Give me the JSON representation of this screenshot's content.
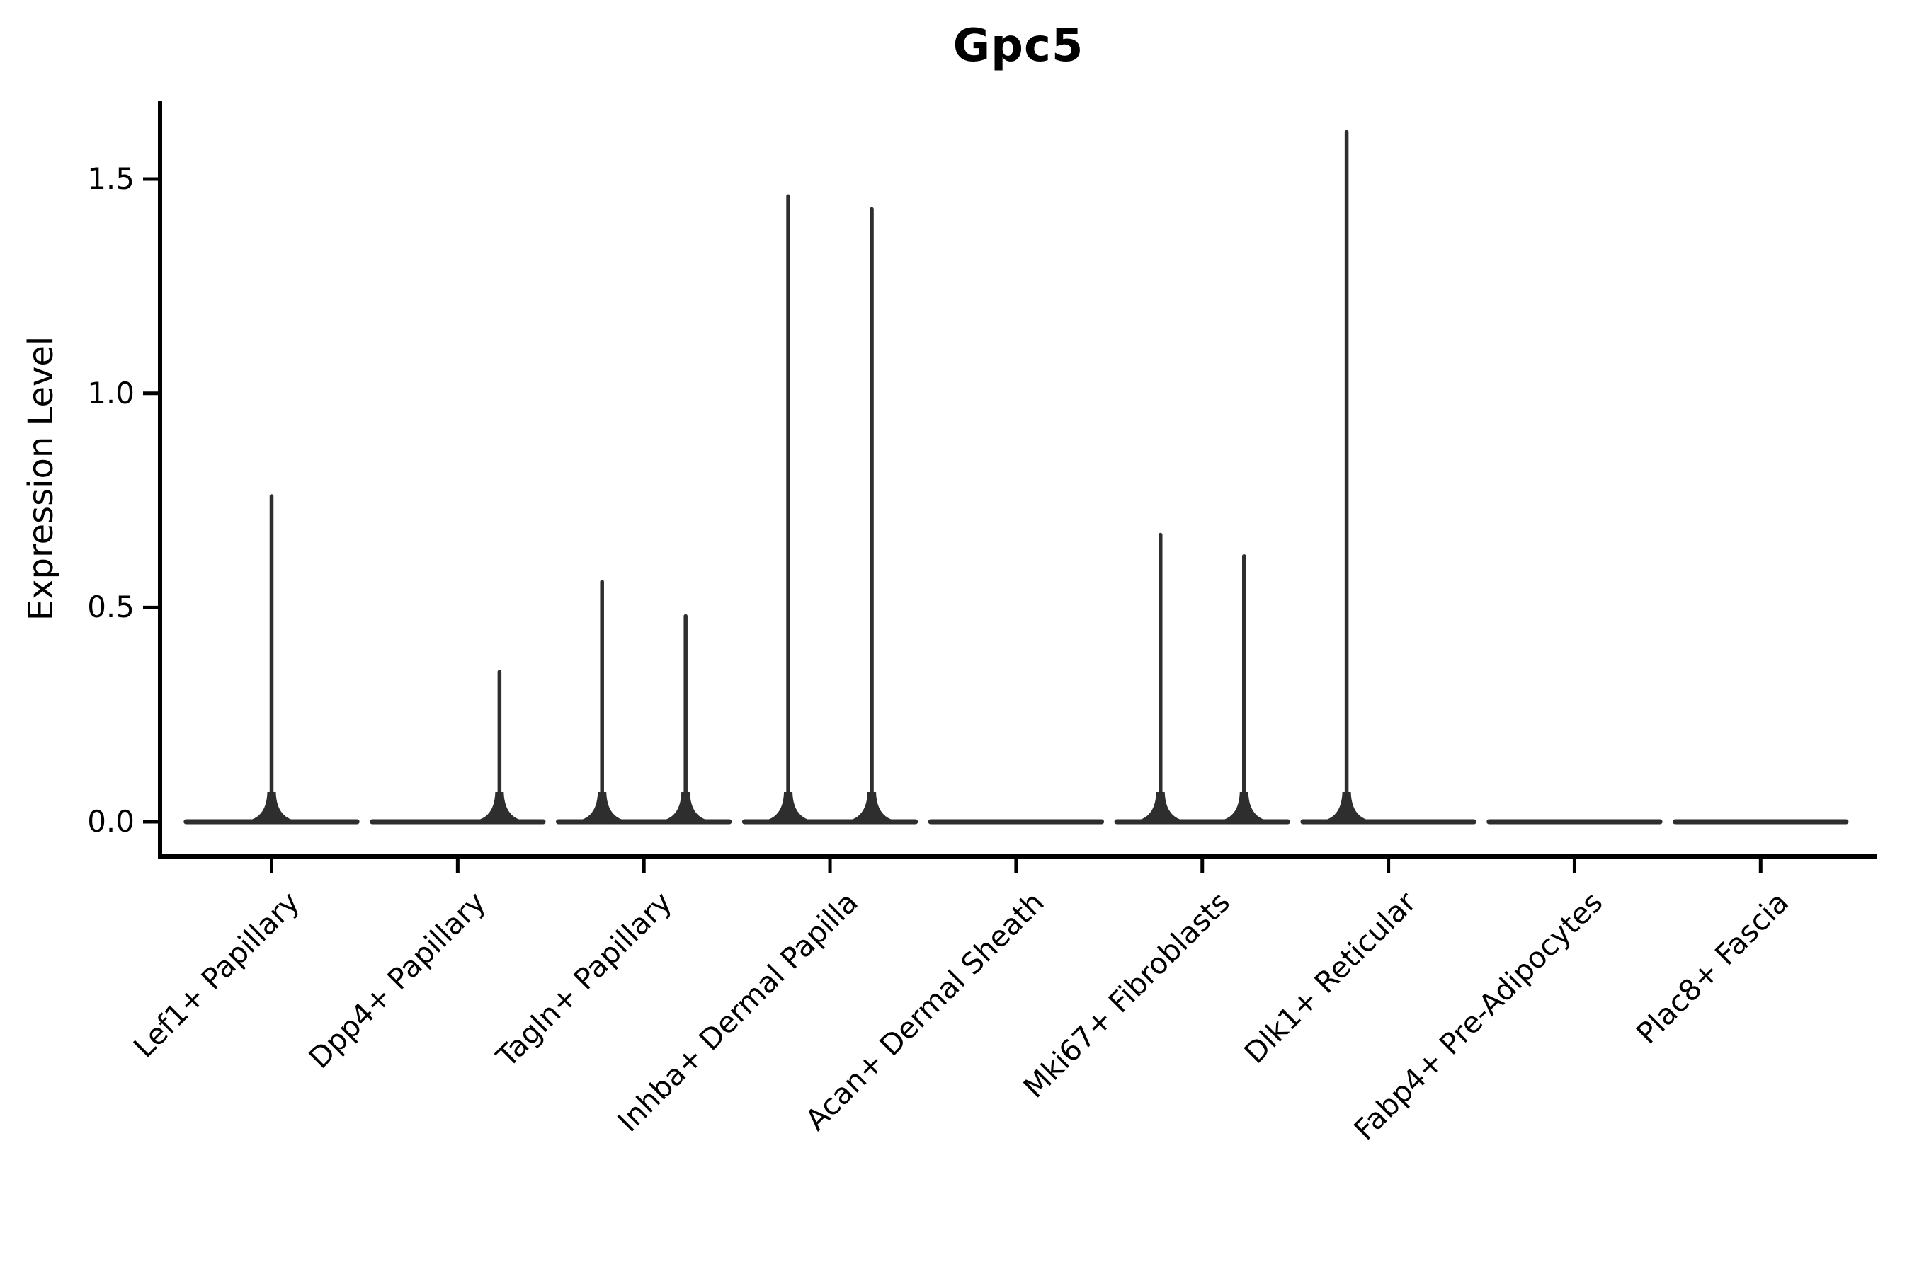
{
  "header": {
    "title": "Gpc5"
  },
  "chart_data": {
    "type": "violin",
    "title": "Gpc5",
    "xlabel": "",
    "ylabel": "Expression Level",
    "ylim": [
      0,
      1.68
    ],
    "y_ticks": [
      {
        "value": 0.0,
        "label": "0.0"
      },
      {
        "value": 0.5,
        "label": "0.5"
      },
      {
        "value": 1.0,
        "label": "1.0"
      },
      {
        "value": 1.5,
        "label": "1.5"
      }
    ],
    "grid": false,
    "legend": null,
    "note": "Violin plot of Gpc5 expression; most cells at 0 so violins collapse to a flat base with thin density spikes; two side-by-side violins per cluster",
    "categories": [
      {
        "label": "Lef1+ Papillary",
        "violins": [
          {
            "position": "center",
            "max_expression": 0.76
          }
        ]
      },
      {
        "label": "Dpp4+ Papillary",
        "violins": [
          {
            "position": "left",
            "max_expression": 0.0
          },
          {
            "position": "right",
            "max_expression": 0.35
          }
        ]
      },
      {
        "label": "Tagln+ Papillary",
        "violins": [
          {
            "position": "left",
            "max_expression": 0.56
          },
          {
            "position": "right",
            "max_expression": 0.48
          }
        ]
      },
      {
        "label": "Inhba+ Dermal Papilla",
        "violins": [
          {
            "position": "left",
            "max_expression": 1.46
          },
          {
            "position": "right",
            "max_expression": 1.43
          }
        ]
      },
      {
        "label": "Acan+ Dermal Sheath",
        "violins": [
          {
            "position": "left",
            "max_expression": 0.0
          },
          {
            "position": "right",
            "max_expression": 0.0
          }
        ]
      },
      {
        "label": "Mki67+ Fibroblasts",
        "violins": [
          {
            "position": "left",
            "max_expression": 0.67
          },
          {
            "position": "right",
            "max_expression": 0.62
          }
        ]
      },
      {
        "label": "Dlk1+ Reticular",
        "violins": [
          {
            "position": "left",
            "max_expression": 1.61
          },
          {
            "position": "right",
            "max_expression": 0.0
          }
        ]
      },
      {
        "label": "Fabp4+ Pre-Adipocytes",
        "violins": [
          {
            "position": "left",
            "max_expression": 0.0
          },
          {
            "position": "right",
            "max_expression": 0.0
          }
        ]
      },
      {
        "label": "Plac8+ Fascia",
        "violins": [
          {
            "position": "left",
            "max_expression": 0.0
          },
          {
            "position": "right",
            "max_expression": 0.0
          }
        ]
      }
    ],
    "colors": {
      "violin_stroke": "#2e2e2e",
      "axis": "#000000",
      "text": "#000000",
      "background": "#ffffff"
    }
  }
}
